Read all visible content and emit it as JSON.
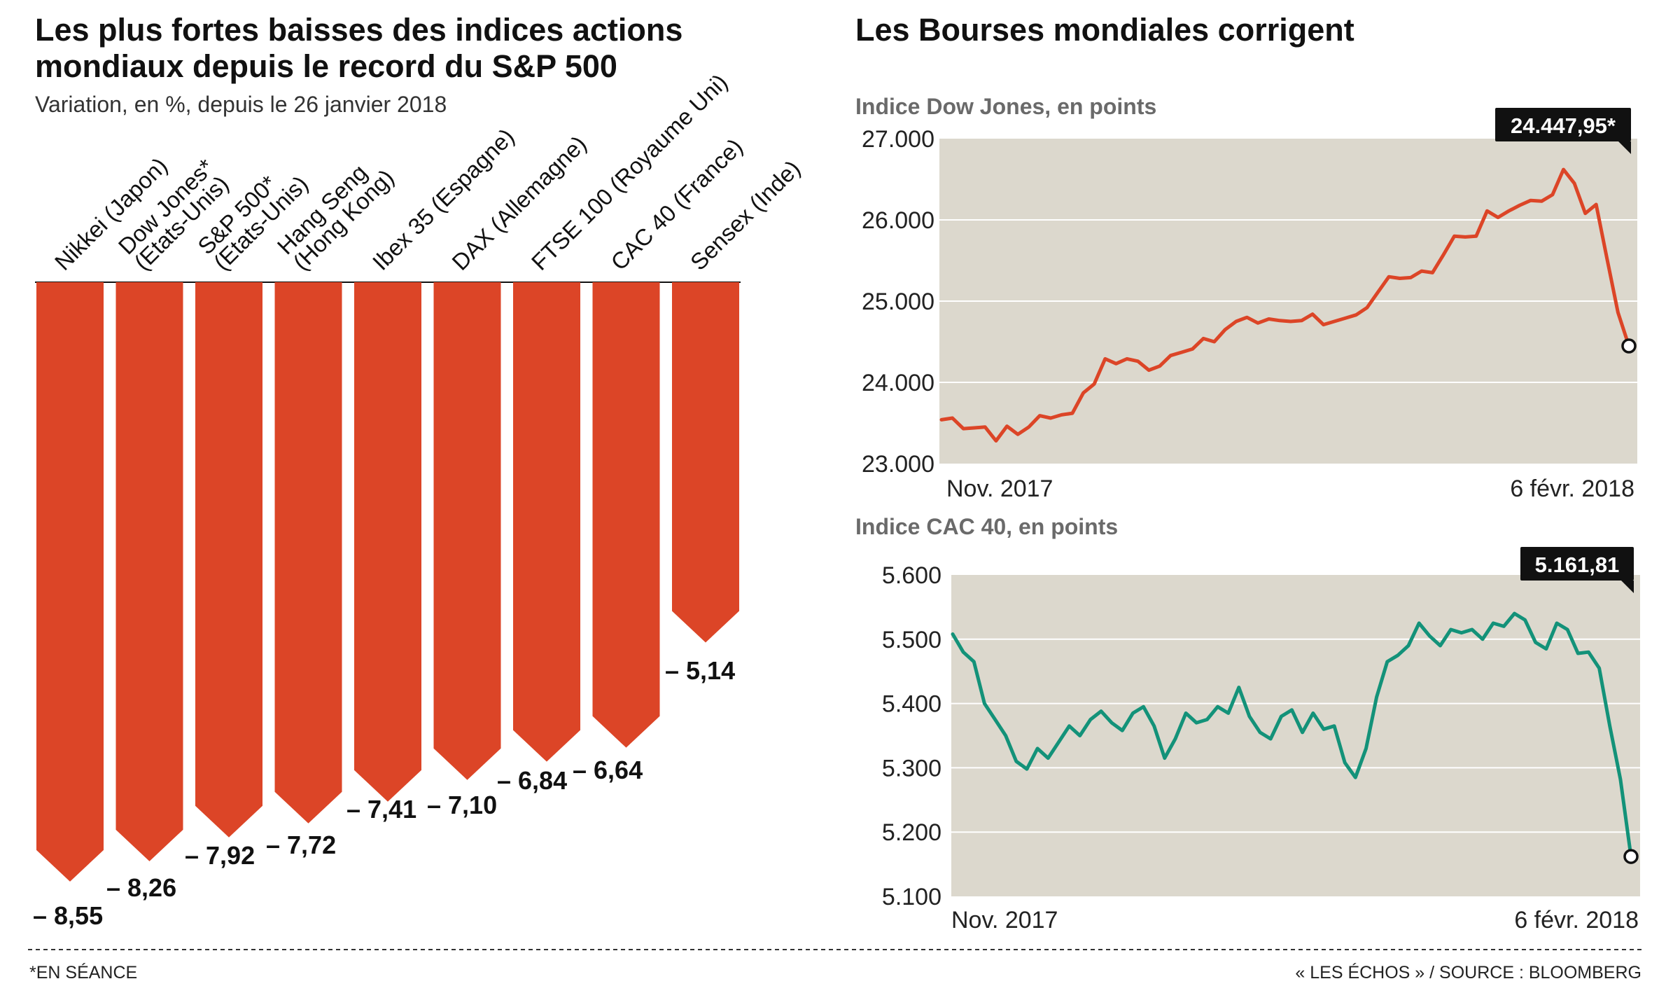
{
  "footer": {
    "note": "*EN SÉANCE",
    "source": "« LES ÉCHOS » / SOURCE : BLOOMBERG"
  },
  "colors": {
    "bar": "#dc4527",
    "dow_line": "#dc4527",
    "cac_line": "#139279",
    "panel_bg": "#dcd8cd",
    "flag_bg": "#111111"
  },
  "chart_data": [
    {
      "type": "bar",
      "title": "Les plus fortes baisses des indices actions mondiaux depuis le record du S&P 500",
      "subtitle": "Variation, en %, depuis le 26 janvier 2018",
      "categories": [
        [
          "Nikkei (Japon)"
        ],
        [
          "Dow Jones*",
          "(Etats-Unis)"
        ],
        [
          "S&P 500*",
          "(Etats-Unis)"
        ],
        [
          "Hang Seng",
          "(Hong Kong)"
        ],
        [
          "Ibex 35 (Espagne)"
        ],
        [
          "DAX (Allemagne)"
        ],
        [
          "FTSE 100 (Royaume Uni)"
        ],
        [
          "CAC 40 (France)"
        ],
        [
          "Sensex (Inde)"
        ]
      ],
      "values": [
        -8.55,
        -8.26,
        -7.92,
        -7.72,
        -7.41,
        -7.1,
        -6.84,
        -6.64,
        -5.14
      ],
      "value_labels": [
        "– 8,55",
        "– 8,26",
        "– 7,92",
        "– 7,72",
        "– 7,41",
        "– 7,10",
        "– 6,84",
        "– 6,64",
        "– 5,14"
      ],
      "ylim": [
        -9,
        0
      ]
    },
    {
      "type": "line",
      "title": "Les Bourses mondiales corrigent",
      "subtitle": "Indice Dow Jones, en points",
      "xlabel_start": "Nov. 2017",
      "xlabel_end": "6 févr. 2018",
      "yticks": [
        23000,
        24000,
        25000,
        26000,
        27000
      ],
      "ytick_labels": [
        "23.000",
        "24.000",
        "25.000",
        "26.000",
        "27.000"
      ],
      "ylim": [
        23000,
        27000
      ],
      "last_value_label": "24.447,95*",
      "values": [
        23540,
        23560,
        23430,
        23440,
        23450,
        23280,
        23460,
        23360,
        23450,
        23590,
        23560,
        23600,
        23620,
        23870,
        23980,
        24290,
        24230,
        24290,
        24260,
        24150,
        24200,
        24330,
        24370,
        24410,
        24540,
        24500,
        24650,
        24750,
        24800,
        24730,
        24780,
        24760,
        24750,
        24760,
        24840,
        24710,
        24750,
        24790,
        24830,
        24920,
        25110,
        25300,
        25280,
        25290,
        25370,
        25350,
        25570,
        25800,
        25790,
        25800,
        26110,
        26030,
        26110,
        26180,
        26240,
        26230,
        26310,
        26620,
        26450,
        26080,
        26190,
        25520,
        24860,
        24448
      ]
    },
    {
      "type": "line",
      "subtitle": "Indice CAC 40, en points",
      "xlabel_start": "Nov. 2017",
      "xlabel_end": "6 févr. 2018",
      "yticks": [
        5100,
        5200,
        5300,
        5400,
        5500,
        5600
      ],
      "ytick_labels": [
        "5.100",
        "5.200",
        "5.300",
        "5.400",
        "5.500",
        "5.600"
      ],
      "ylim": [
        5100,
        5600
      ],
      "last_value_label": "5.161,81",
      "values": [
        5508,
        5480,
        5465,
        5400,
        5375,
        5350,
        5310,
        5298,
        5330,
        5315,
        5340,
        5365,
        5350,
        5375,
        5388,
        5370,
        5358,
        5385,
        5395,
        5365,
        5315,
        5345,
        5385,
        5370,
        5375,
        5395,
        5385,
        5425,
        5380,
        5355,
        5345,
        5380,
        5390,
        5355,
        5385,
        5360,
        5365,
        5308,
        5285,
        5330,
        5410,
        5465,
        5475,
        5490,
        5525,
        5505,
        5490,
        5515,
        5510,
        5515,
        5500,
        5525,
        5520,
        5540,
        5530,
        5495,
        5485,
        5525,
        5515,
        5478,
        5480,
        5455,
        5365,
        5282,
        5162
      ]
    }
  ]
}
